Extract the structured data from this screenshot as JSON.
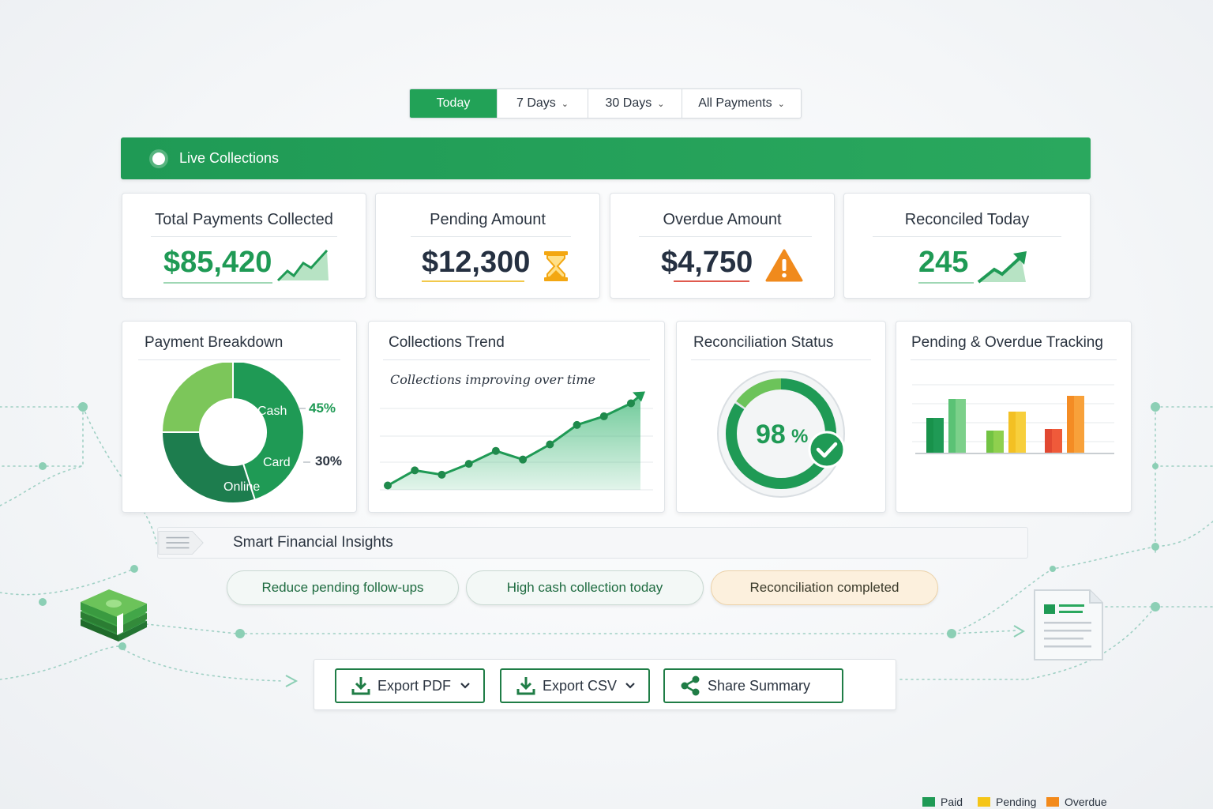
{
  "filters": [
    {
      "label": "Today",
      "active": true,
      "dropdown": false
    },
    {
      "label": "7 Days",
      "active": false,
      "dropdown": true
    },
    {
      "label": "30 Days",
      "active": false,
      "dropdown": true
    },
    {
      "label": "All Payments",
      "active": false,
      "dropdown": true
    }
  ],
  "live": {
    "label": "Live Collections"
  },
  "kpis": [
    {
      "title": "Total Payments Collected",
      "value": "$85,420",
      "icon": "trend-up-area-icon",
      "color": "#1f9a55"
    },
    {
      "title": "Pending Amount",
      "value": "$12,300",
      "icon": "hourglass-icon",
      "color": "#253041"
    },
    {
      "title": "Overdue Amount",
      "value": "$4,750",
      "icon": "warning-icon",
      "color": "#253041"
    },
    {
      "title": "Reconciled Today",
      "value": "245",
      "icon": "trend-up-arrow-icon",
      "color": "#1f9a55"
    }
  ],
  "breakdown": {
    "title": "Payment Breakdown",
    "segments": [
      {
        "label": "Cash",
        "pct": "45%",
        "color": "#1f9a55"
      },
      {
        "label": "Card",
        "pct": "30%",
        "color": "#1d7d4e"
      },
      {
        "label": "Online",
        "color": "#136b43"
      }
    ]
  },
  "trend": {
    "title": "Collections Trend",
    "subtitle": "Collections improving over time"
  },
  "recon": {
    "title": "Reconciliation Status",
    "value": "98",
    "unit": "%",
    "level": 0.98
  },
  "tracking": {
    "title": "Pending & Overdue Tracking",
    "legend": [
      {
        "label": "Paid",
        "color": "#1f9a55"
      },
      {
        "label": "Pending",
        "color": "#f5c518"
      },
      {
        "label": "Overdue",
        "color": "#f38a1b"
      }
    ]
  },
  "insights": {
    "title": "Smart Financial Insights",
    "pills": [
      "Reduce pending follow-ups",
      "High cash collection today",
      "Reconciliation completed"
    ]
  },
  "export": {
    "pdf": "Export PDF",
    "csv": "Export CSV",
    "share": "Share Summary"
  },
  "chart_data": [
    {
      "type": "pie",
      "title": "Payment Breakdown",
      "categories": [
        "Cash",
        "Card",
        "Online"
      ],
      "values": [
        45,
        30,
        25
      ]
    },
    {
      "type": "area",
      "title": "Collections Trend",
      "subtitle": "Collections improving over time",
      "values": [
        2,
        9,
        7,
        12,
        18,
        14,
        21,
        30,
        34,
        40
      ]
    },
    {
      "type": "bar",
      "title": "Pending & Overdue Tracking",
      "series": [
        {
          "name": "Paid",
          "values": [
            44,
            68,
            28,
            52,
            30,
            72
          ]
        }
      ]
    }
  ]
}
